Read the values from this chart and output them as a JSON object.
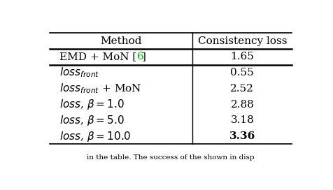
{
  "col_headers": [
    "Method",
    "Consistency loss"
  ],
  "emd_row_value": "1.65",
  "rows": [
    [
      "$loss_{front}$",
      "0.55"
    ],
    [
      "$loss_{front}$ + MoN",
      "2.52"
    ],
    [
      "$loss$, $\\beta = 1.0$",
      "2.88"
    ],
    [
      "$loss$, $\\beta = 5.0$",
      "3.18"
    ],
    [
      "$loss$, $\\beta = 10.0$",
      "3.36"
    ]
  ],
  "background_color": "#ffffff",
  "text_color": "#000000",
  "green_color": "#00bb00",
  "line_color": "#000000",
  "fontsize": 11,
  "caption": "in the table. The success of the shown in disp"
}
